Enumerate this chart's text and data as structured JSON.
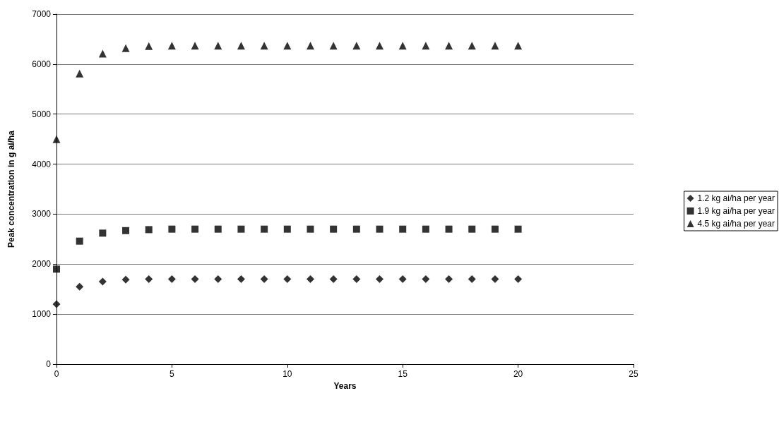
{
  "chart_data": {
    "type": "scatter",
    "xlabel": "Years",
    "ylabel": "Peak concentration in g ai/ha",
    "xlim": [
      0,
      25
    ],
    "xticks": [
      0,
      5,
      10,
      15,
      20,
      25
    ],
    "ylim": [
      0,
      7000
    ],
    "yticks": [
      0,
      1000,
      2000,
      3000,
      4000,
      5000,
      6000,
      7000
    ],
    "grid": "y",
    "legend": "right",
    "x": [
      0,
      1,
      2,
      3,
      4,
      5,
      6,
      7,
      8,
      9,
      10,
      11,
      12,
      13,
      14,
      15,
      16,
      17,
      18,
      19,
      20
    ],
    "series": [
      {
        "name": "1.2 kg ai/ha per year",
        "color": "#000000",
        "marker": "diamond",
        "values": [
          1200,
          1550,
          1650,
          1690,
          1700,
          1700,
          1700,
          1700,
          1700,
          1700,
          1700,
          1700,
          1700,
          1700,
          1700,
          1700,
          1700,
          1700,
          1700,
          1700,
          1700
        ]
      },
      {
        "name": "1.9 kg ai/ha per year",
        "color": "#000000",
        "marker": "square",
        "values": [
          1900,
          2460,
          2620,
          2670,
          2690,
          2700,
          2700,
          2700,
          2700,
          2700,
          2700,
          2700,
          2700,
          2700,
          2700,
          2700,
          2700,
          2700,
          2700,
          2700,
          2700
        ]
      },
      {
        "name": "4.5 kg ai/ha per year",
        "color": "#000000",
        "marker": "triangle",
        "values": [
          4500,
          5810,
          6210,
          6320,
          6360,
          6370,
          6370,
          6370,
          6370,
          6370,
          6370,
          6370,
          6370,
          6370,
          6370,
          6370,
          6370,
          6370,
          6370,
          6370,
          6370
        ]
      }
    ]
  }
}
